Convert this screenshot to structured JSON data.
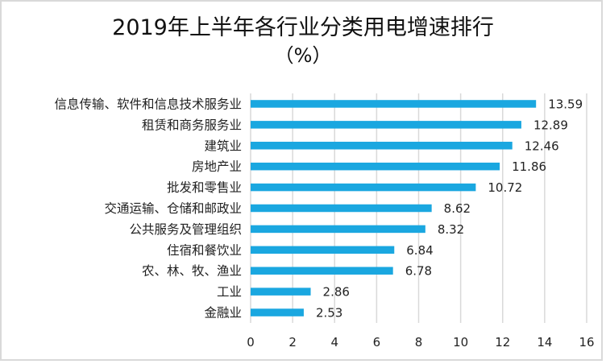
{
  "chart_data": {
    "type": "bar",
    "orientation": "horizontal",
    "title": "2019年上半年各行业分类用电增速排行",
    "subtitle": "（%）",
    "xlabel": "",
    "ylabel": "",
    "categories": [
      "信息传输、软件和信息技术服务业",
      "租赁和商务服务业",
      "建筑业",
      "房地产业",
      "批发和零售业",
      "交通运输、仓储和邮政业",
      "公共服务及管理组织",
      "住宿和餐饮业",
      "农、林、牧、渔业",
      "工业",
      "金融业"
    ],
    "values": [
      13.59,
      12.89,
      12.46,
      11.86,
      10.72,
      8.62,
      8.32,
      6.84,
      6.78,
      2.86,
      2.53
    ],
    "value_labels": [
      "13.59",
      "12.89",
      "12.46",
      "11.86",
      "10.72",
      "8.62",
      "8.32",
      "6.84",
      "6.78",
      "2.86",
      "2.53"
    ],
    "xlim": [
      0,
      16
    ],
    "x_ticks": [
      "0",
      "2",
      "4",
      "6",
      "8",
      "10",
      "12",
      "14",
      "16"
    ],
    "x_tick_values": [
      0,
      2,
      4,
      6,
      8,
      10,
      12,
      14,
      16
    ],
    "grid": "vertical",
    "legend": "none",
    "colors": {
      "bar": "#1aa7e0",
      "grid": "#d9d9d9",
      "text": "#222222"
    }
  }
}
